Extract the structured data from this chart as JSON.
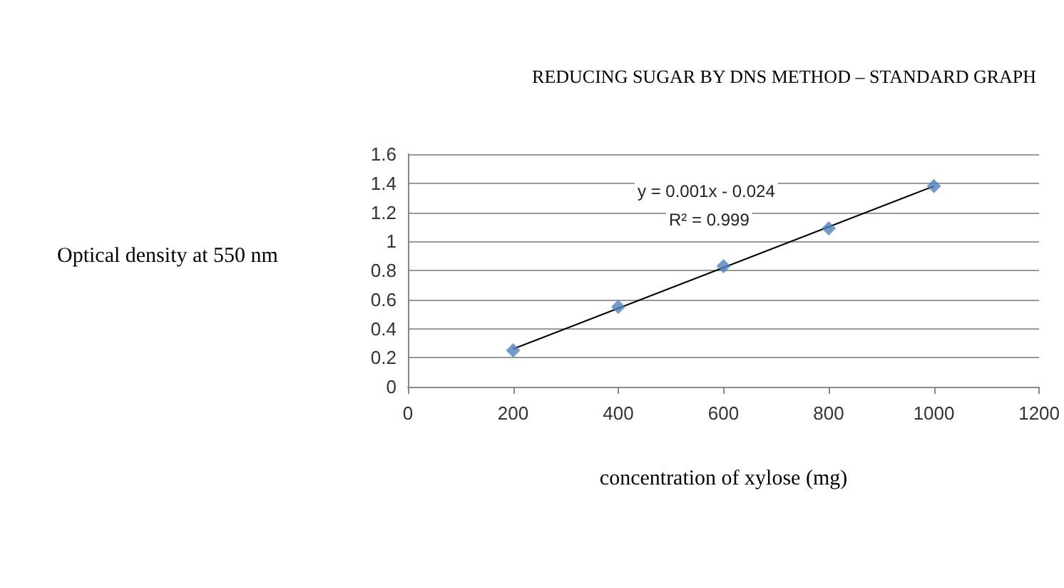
{
  "chart_data": {
    "type": "scatter",
    "title": "REDUCING SUGAR BY DNS METHOD – STANDARD GRAPH",
    "xlabel": "concentration of xylose (mg)",
    "ylabel": "Optical density at 550 nm",
    "x": [
      200,
      400,
      600,
      800,
      1000
    ],
    "series": [
      {
        "color": "#4f81bd",
        "marker": "diamond",
        "values": [
          0.25,
          0.55,
          0.83,
          1.09,
          1.38
        ]
      },
      {
        "type": "line",
        "color": "#000000",
        "marker": "none",
        "x": [
          200,
          1000
        ],
        "values": [
          0.26,
          1.38
        ]
      }
    ],
    "annotations": [
      "y = 0.001x - 0.024",
      "R² = 0.999"
    ],
    "xlim": [
      0,
      1200
    ],
    "xticks": [
      0,
      200,
      400,
      600,
      800,
      1000,
      1200
    ],
    "ylim": [
      0,
      1.6
    ],
    "yticks": [
      0,
      0.2,
      0.4,
      0.6,
      0.8,
      1,
      1.2,
      1.4,
      1.6
    ],
    "grid": "y"
  }
}
